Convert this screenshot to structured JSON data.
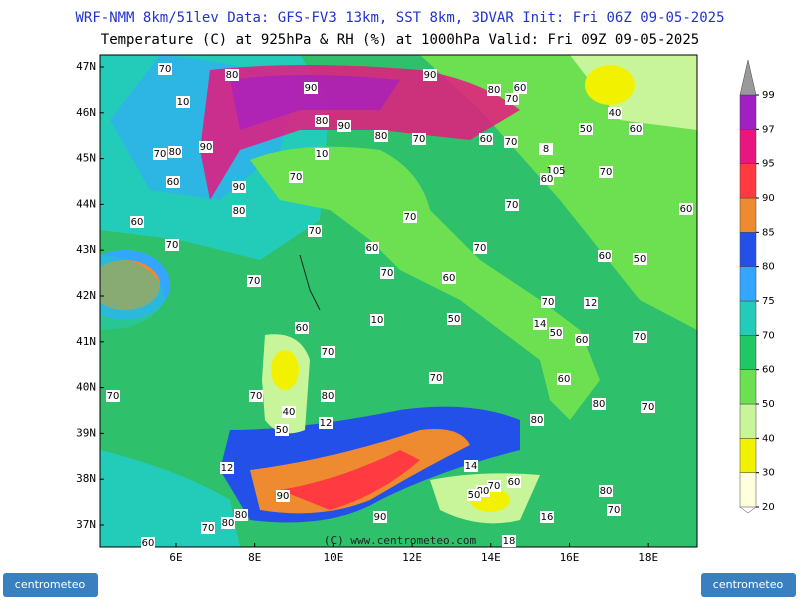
{
  "header": {
    "title": "WRF-NMM 8km/51lev  Data: GFS-FV3 13km, SST 8km, 3DVAR  Init: Fri 06Z 09-05-2025",
    "subtitle": "Temperature (C) at 925hPa & RH (%) at 1000hPa  Valid: Fri 09Z 09-05-2025"
  },
  "map": {
    "lat_labels": [
      "47N",
      "46N",
      "45N",
      "44N",
      "43N",
      "42N",
      "41N",
      "40N",
      "39N",
      "38N",
      "37N"
    ],
    "lon_labels": [
      "6E",
      "8E",
      "10E",
      "12E",
      "14E",
      "16E",
      "18E"
    ],
    "contour_labels": [
      "70",
      "80",
      "10",
      "90",
      "90",
      "80",
      "60",
      "70",
      "40",
      "50",
      "60",
      "80",
      "90",
      "80",
      "70",
      "90",
      "70",
      "80",
      "60",
      "70",
      "8",
      "10",
      "60",
      "90",
      "70",
      "105",
      "60",
      "70",
      "80",
      "70",
      "70",
      "60",
      "60",
      "70",
      "70",
      "60",
      "70",
      "60",
      "50",
      "70",
      "60",
      "70",
      "70",
      "12",
      "10",
      "50",
      "14",
      "50",
      "60",
      "70",
      "60",
      "70",
      "70",
      "60",
      "70",
      "70",
      "80",
      "40",
      "80",
      "70",
      "12",
      "50",
      "80",
      "12",
      "14",
      "90",
      "70",
      "80",
      "60",
      "50",
      "80",
      "80",
      "80",
      "70",
      "90",
      "70",
      "16",
      "18",
      "60"
    ],
    "copyright": "(C) www.centrometeo.com"
  },
  "colorbar": {
    "ticks": [
      20,
      30,
      40,
      50,
      60,
      70,
      75,
      80,
      85,
      90,
      95,
      97,
      99
    ],
    "colors": [
      "#ffffe0",
      "#f2f200",
      "#c8f59a",
      "#6ce050",
      "#22c765",
      "#22ccb8",
      "#35a6ff",
      "#2450ea",
      "#ee8a30",
      "#ff3a40",
      "#e8177f",
      "#a21fc4"
    ],
    "over_color": "#9a9a9a"
  },
  "logos": {
    "left": "centrometeo",
    "right": "centrometeo"
  }
}
